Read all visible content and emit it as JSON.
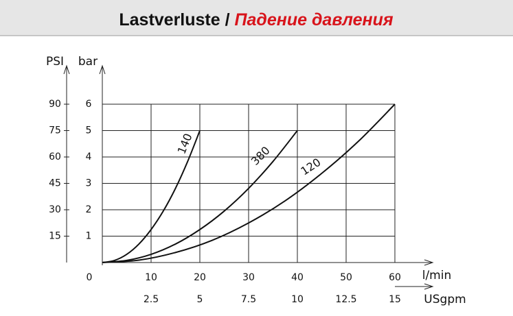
{
  "chart_data": {
    "type": "line",
    "title": "Lastverluste / ",
    "title_highlight": "Падение давления",
    "x_label": "l/min",
    "x2_label": "USgpm",
    "y_label": "bar",
    "y2_label": "PSI",
    "xlim": [
      0,
      60
    ],
    "xticks": [
      0,
      10,
      20,
      30,
      40,
      50,
      60
    ],
    "x2lim": [
      0,
      15
    ],
    "x2ticks": [
      2.5,
      5,
      7.5,
      10,
      12.5,
      15
    ],
    "ylim": [
      0,
      6
    ],
    "yticks": [
      1,
      2,
      3,
      4,
      5,
      6
    ],
    "y2lim": [
      0,
      90
    ],
    "y2ticks": [
      15,
      30,
      45,
      60,
      75,
      90
    ],
    "grid": true,
    "series": [
      {
        "name": "140",
        "color": "#111111",
        "x": [
          0,
          2.5,
          5,
          7.5,
          10,
          12.5,
          15,
          17.5,
          20
        ],
        "values": [
          0,
          0.08,
          0.31,
          0.7,
          1.25,
          1.95,
          2.81,
          3.83,
          5
        ]
      },
      {
        "name": "380",
        "color": "#111111",
        "x": [
          0,
          5,
          10,
          15,
          20,
          25,
          30,
          35,
          40
        ],
        "values": [
          0,
          0.08,
          0.31,
          0.7,
          1.25,
          1.95,
          2.81,
          3.83,
          5
        ]
      },
      {
        "name": "120",
        "color": "#111111",
        "x": [
          0,
          7.5,
          15,
          22.5,
          30,
          37.5,
          45,
          52.5,
          60
        ],
        "values": [
          0,
          0.09,
          0.38,
          0.84,
          1.5,
          2.34,
          3.38,
          4.59,
          6
        ]
      }
    ]
  }
}
